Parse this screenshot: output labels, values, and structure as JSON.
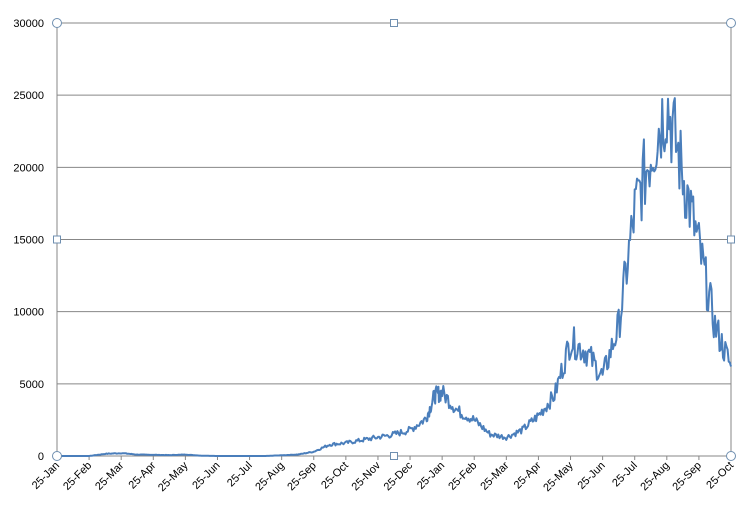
{
  "chart_data": {
    "type": "line",
    "title": "",
    "xlabel": "",
    "ylabel": "",
    "ylim": [
      0,
      30000
    ],
    "y_ticks": [
      0,
      5000,
      10000,
      15000,
      20000,
      25000,
      30000
    ],
    "y_tick_labels": [
      "0",
      "5000",
      "10000",
      "15000",
      "20000",
      "25000",
      "30000"
    ],
    "x_tick_labels": [
      "25-Jan",
      "25-Feb",
      "25-Mar",
      "25-Apr",
      "25-May",
      "25-Jun",
      "25-Jul",
      "25-Aug",
      "25-Sep",
      "25-Oct",
      "25-Nov",
      "25-Dec",
      "25-Jan",
      "25-Feb",
      "25-Mar",
      "25-Apr",
      "25-May",
      "25-Jun",
      "25-Jul",
      "25-Aug",
      "25-Sep",
      "25-Oct"
    ],
    "grid": "horizontal",
    "legend": "none",
    "colors": {
      "line": "#4a7ebb",
      "gridline": "#878787",
      "axis": "#878787"
    },
    "series": [
      {
        "x": [
          "25-Jan",
          "10-Feb",
          "25-Feb",
          "10-Mar",
          "25-Mar",
          "10-Apr",
          "25-Apr",
          "10-May",
          "25-May",
          "10-Jun",
          "25-Jun",
          "10-Jul",
          "25-Jul",
          "10-Aug",
          "25-Aug",
          "10-Sep",
          "25-Sep",
          "10-Oct",
          "25-Oct",
          "10-Nov",
          "25-Nov",
          "10-Dec",
          "25-Dec",
          "10-Jan",
          "18-Jan",
          "25-Jan",
          "10-Feb",
          "25-Feb",
          "10-Mar",
          "25-Mar",
          "10-Apr",
          "25-Apr",
          "10-May",
          "25-May",
          "10-Jun",
          "25-Jun",
          "10-Jul",
          "25-Jul",
          "10-Aug",
          "25-Aug",
          "10-Sep",
          "25-Sep",
          "10-Oct",
          "25-Oct"
        ],
        "values": [
          0,
          0,
          0,
          150,
          200,
          100,
          80,
          60,
          100,
          20,
          0,
          0,
          0,
          0,
          50,
          100,
          300,
          800,
          900,
          1100,
          1300,
          1500,
          1800,
          2600,
          4200,
          4400,
          3100,
          2500,
          1500,
          1300,
          1800,
          2800,
          4200,
          8000,
          7200,
          5500,
          9000,
          17000,
          21000,
          24500,
          19500,
          14500,
          9000,
          6200
        ]
      }
    ]
  }
}
